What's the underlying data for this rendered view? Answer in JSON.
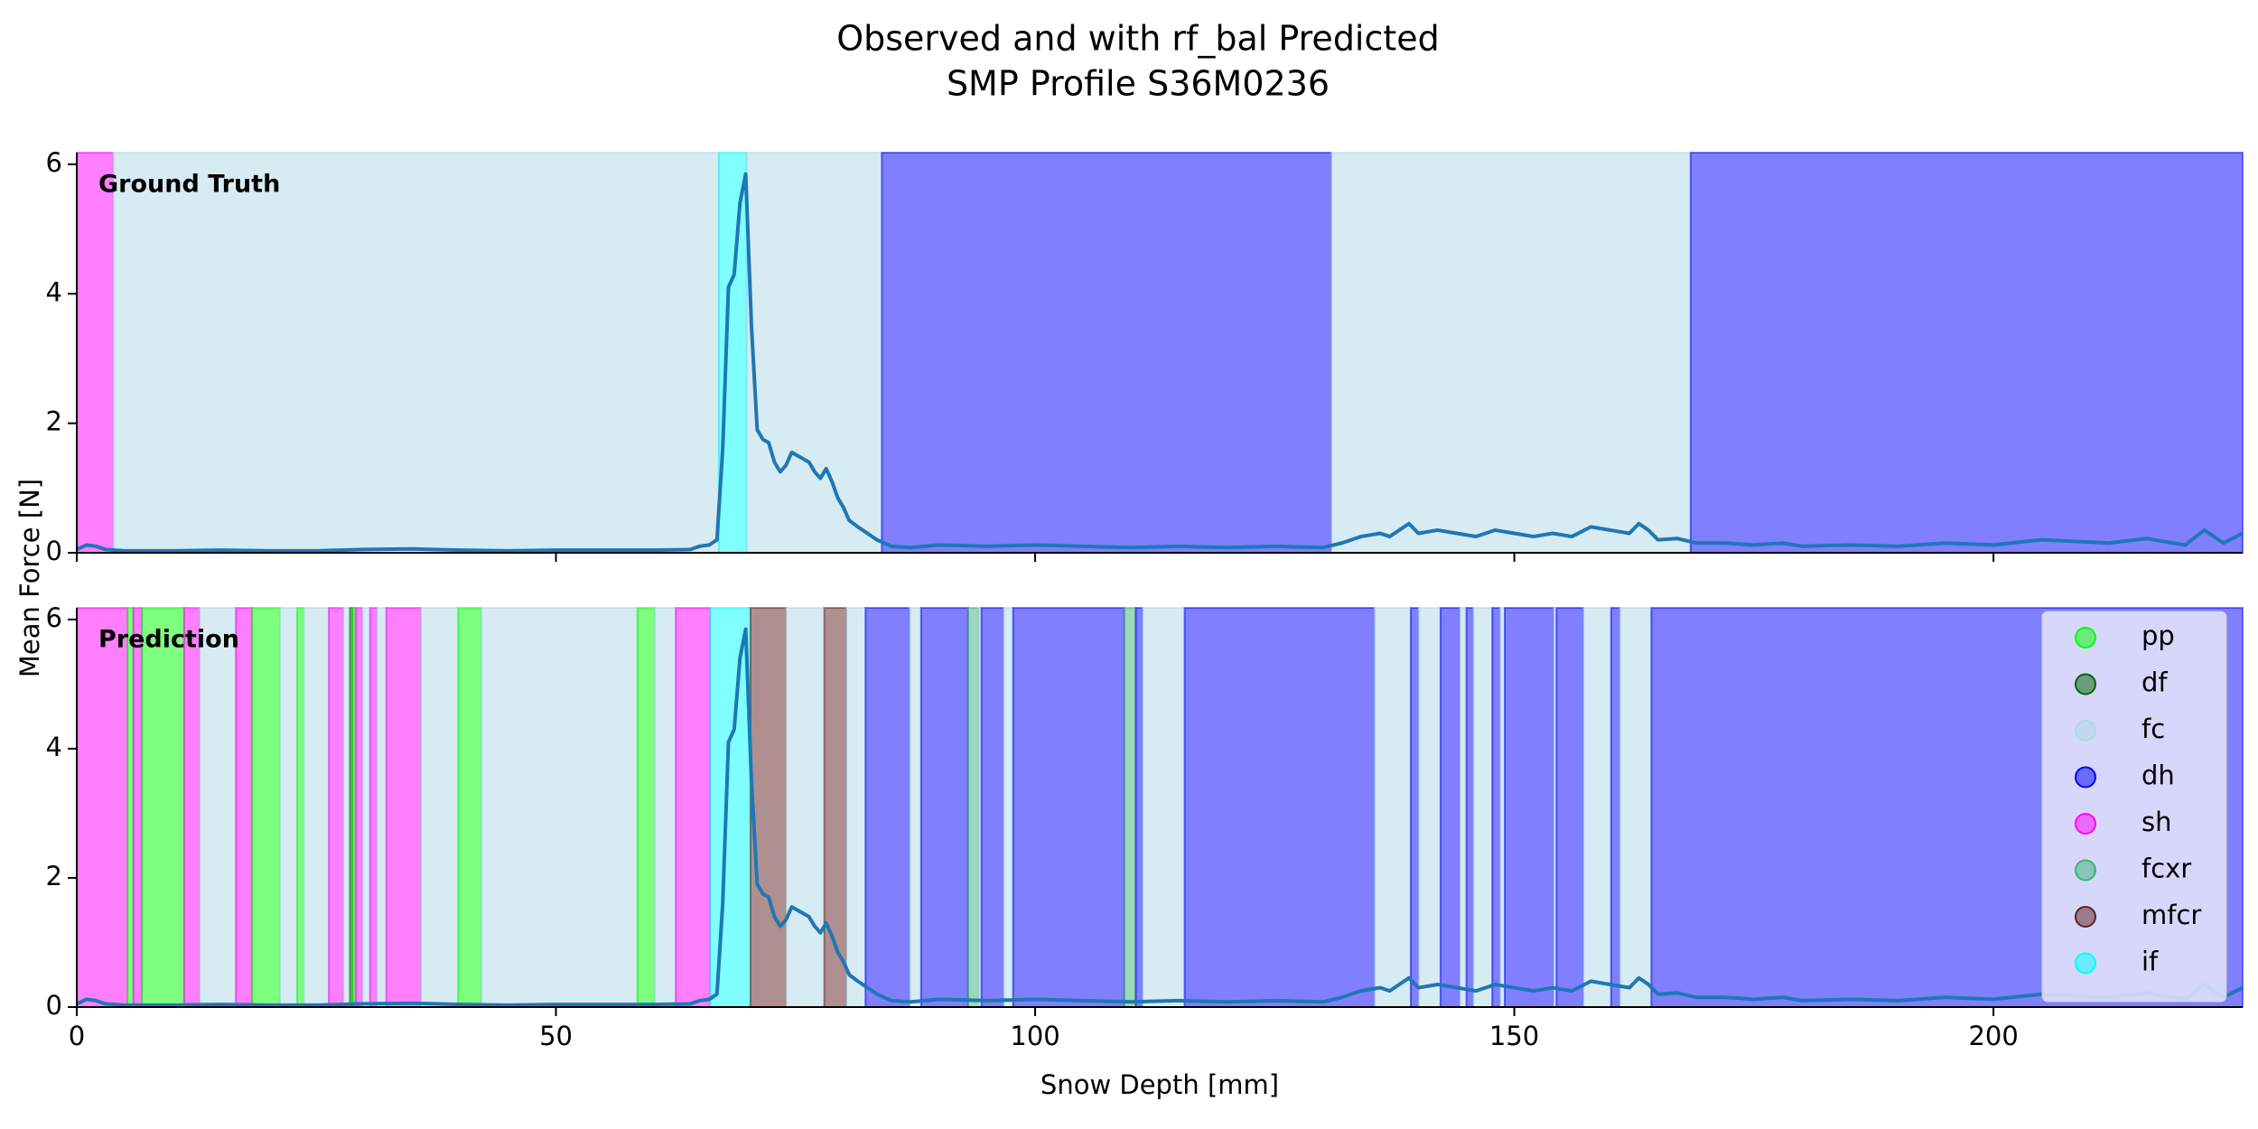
{
  "chart_data": [
    {
      "type": "line",
      "title": "Observed and with rf_bal Predicted",
      "subtitle": "SMP Profile S36M0236",
      "ylabel": "Mean Force [N]",
      "annotation": "Ground Truth",
      "xlim": [
        0,
        226
      ],
      "ylim": [
        0,
        6.18
      ],
      "yticks": [
        0,
        2,
        4,
        6
      ],
      "line_color": "#1f77b4",
      "span_alpha": 0.5,
      "x": [
        0,
        1,
        2,
        3,
        5,
        10,
        15,
        20,
        25,
        30,
        35,
        40,
        45,
        50,
        55,
        60,
        64,
        65,
        66,
        66.8,
        67.4,
        68,
        68.6,
        69.2,
        69.8,
        70.4,
        71,
        71.6,
        72.2,
        72.8,
        73.4,
        74,
        74.6,
        75.2,
        75.8,
        76.4,
        77,
        77.6,
        78.2,
        78.8,
        79.4,
        80,
        80.6,
        81.5,
        82.5,
        83.5,
        85,
        87,
        90,
        95,
        100,
        105,
        110,
        115,
        120,
        125,
        130,
        132,
        134,
        136,
        137,
        138,
        139,
        140,
        142,
        144,
        146,
        148,
        150,
        152,
        154,
        156,
        158,
        160,
        162,
        163,
        164,
        165,
        167,
        169,
        172,
        175,
        178,
        180,
        185,
        190,
        195,
        200,
        205,
        208,
        212,
        216,
        220,
        222,
        224,
        226
      ],
      "values": [
        0.05,
        0.12,
        0.1,
        0.05,
        0.03,
        0.03,
        0.04,
        0.03,
        0.03,
        0.05,
        0.06,
        0.04,
        0.03,
        0.04,
        0.04,
        0.04,
        0.05,
        0.1,
        0.12,
        0.2,
        1.6,
        4.1,
        4.3,
        5.4,
        5.85,
        3.5,
        1.9,
        1.75,
        1.7,
        1.4,
        1.25,
        1.35,
        1.55,
        1.5,
        1.45,
        1.4,
        1.25,
        1.15,
        1.3,
        1.1,
        0.85,
        0.7,
        0.5,
        0.4,
        0.3,
        0.2,
        0.1,
        0.08,
        0.12,
        0.1,
        0.12,
        0.1,
        0.08,
        0.1,
        0.08,
        0.1,
        0.08,
        0.15,
        0.25,
        0.3,
        0.25,
        0.35,
        0.45,
        0.3,
        0.35,
        0.3,
        0.25,
        0.35,
        0.3,
        0.25,
        0.3,
        0.25,
        0.4,
        0.35,
        0.3,
        0.45,
        0.35,
        0.2,
        0.22,
        0.15,
        0.15,
        0.12,
        0.15,
        0.1,
        0.12,
        0.1,
        0.15,
        0.12,
        0.2,
        0.18,
        0.15,
        0.22,
        0.12,
        0.35,
        0.15,
        0.3
      ],
      "spans": [
        {
          "class": "sh",
          "start": 0,
          "end": 3.8
        },
        {
          "class": "fc",
          "start": 3.8,
          "end": 67
        },
        {
          "class": "if",
          "start": 67,
          "end": 69.9
        },
        {
          "class": "fc",
          "start": 69.9,
          "end": 84
        },
        {
          "class": "dh",
          "start": 84,
          "end": 130.9
        },
        {
          "class": "fc",
          "start": 130.9,
          "end": 168.4
        },
        {
          "class": "dh",
          "start": 168.4,
          "end": 226
        }
      ]
    },
    {
      "type": "line",
      "xlabel": "Snow Depth [mm]",
      "annotation": "Prediction",
      "xlim": [
        0,
        226
      ],
      "ylim": [
        0,
        6.18
      ],
      "xticks": [
        0,
        50,
        100,
        150,
        200
      ],
      "yticks": [
        0,
        2,
        4,
        6
      ],
      "line_color": "#1f77b4",
      "span_alpha": 0.5,
      "x": [
        0,
        1,
        2,
        3,
        5,
        10,
        15,
        20,
        25,
        30,
        35,
        40,
        45,
        50,
        55,
        60,
        64,
        65,
        66,
        66.8,
        67.4,
        68,
        68.6,
        69.2,
        69.8,
        70.4,
        71,
        71.6,
        72.2,
        72.8,
        73.4,
        74,
        74.6,
        75.2,
        75.8,
        76.4,
        77,
        77.6,
        78.2,
        78.8,
        79.4,
        80,
        80.6,
        81.5,
        82.5,
        83.5,
        85,
        87,
        90,
        95,
        100,
        105,
        110,
        115,
        120,
        125,
        130,
        132,
        134,
        136,
        137,
        138,
        139,
        140,
        142,
        144,
        146,
        148,
        150,
        152,
        154,
        156,
        158,
        160,
        162,
        163,
        164,
        165,
        167,
        169,
        172,
        175,
        178,
        180,
        185,
        190,
        195,
        200,
        205,
        208,
        212,
        216,
        220,
        222,
        224,
        226
      ],
      "values": [
        0.05,
        0.12,
        0.1,
        0.05,
        0.03,
        0.03,
        0.04,
        0.03,
        0.03,
        0.05,
        0.06,
        0.04,
        0.03,
        0.04,
        0.04,
        0.04,
        0.05,
        0.1,
        0.12,
        0.2,
        1.6,
        4.1,
        4.3,
        5.4,
        5.85,
        3.5,
        1.9,
        1.75,
        1.7,
        1.4,
        1.25,
        1.35,
        1.55,
        1.5,
        1.45,
        1.4,
        1.25,
        1.15,
        1.3,
        1.1,
        0.85,
        0.7,
        0.5,
        0.4,
        0.3,
        0.2,
        0.1,
        0.08,
        0.12,
        0.1,
        0.12,
        0.1,
        0.08,
        0.1,
        0.08,
        0.1,
        0.08,
        0.15,
        0.25,
        0.3,
        0.25,
        0.35,
        0.45,
        0.3,
        0.35,
        0.3,
        0.25,
        0.35,
        0.3,
        0.25,
        0.3,
        0.25,
        0.4,
        0.35,
        0.3,
        0.45,
        0.35,
        0.2,
        0.22,
        0.15,
        0.15,
        0.12,
        0.15,
        0.1,
        0.12,
        0.1,
        0.15,
        0.12,
        0.2,
        0.18,
        0.15,
        0.22,
        0.12,
        0.35,
        0.15,
        0.3
      ],
      "spans": [
        {
          "class": "sh",
          "start": 0,
          "end": 5.3
        },
        {
          "class": "pp",
          "start": 5.3,
          "end": 5.9
        },
        {
          "class": "sh",
          "start": 5.9,
          "end": 6.8
        },
        {
          "class": "pp",
          "start": 6.8,
          "end": 11.2
        },
        {
          "class": "sh",
          "start": 11.2,
          "end": 12.8
        },
        {
          "class": "fc",
          "start": 12.8,
          "end": 16.6
        },
        {
          "class": "sh",
          "start": 16.6,
          "end": 18.3
        },
        {
          "class": "pp",
          "start": 18.3,
          "end": 21.2
        },
        {
          "class": "fc",
          "start": 21.2,
          "end": 23
        },
        {
          "class": "pp",
          "start": 23,
          "end": 23.7
        },
        {
          "class": "fc",
          "start": 23.7,
          "end": 26.3
        },
        {
          "class": "sh",
          "start": 26.3,
          "end": 27.8
        },
        {
          "class": "fc",
          "start": 27.8,
          "end": 28.5
        },
        {
          "class": "df",
          "start": 28.5,
          "end": 28.8
        },
        {
          "class": "pp",
          "start": 28.8,
          "end": 29.1
        },
        {
          "class": "sh",
          "start": 29.1,
          "end": 29.8
        },
        {
          "class": "fc",
          "start": 29.8,
          "end": 30.6
        },
        {
          "class": "sh",
          "start": 30.6,
          "end": 31.3
        },
        {
          "class": "fc",
          "start": 31.3,
          "end": 32.3
        },
        {
          "class": "sh",
          "start": 32.3,
          "end": 35.9
        },
        {
          "class": "fc",
          "start": 35.9,
          "end": 39.8
        },
        {
          "class": "pp",
          "start": 39.8,
          "end": 42.2
        },
        {
          "class": "fc",
          "start": 42.2,
          "end": 58.5
        },
        {
          "class": "pp",
          "start": 58.5,
          "end": 60.3
        },
        {
          "class": "fc",
          "start": 60.3,
          "end": 62.5
        },
        {
          "class": "sh",
          "start": 62.5,
          "end": 66.1
        },
        {
          "class": "if",
          "start": 66.1,
          "end": 70.3
        },
        {
          "class": "mfcr",
          "start": 70.3,
          "end": 74
        },
        {
          "class": "fc",
          "start": 74,
          "end": 78
        },
        {
          "class": "mfcr",
          "start": 78,
          "end": 80.3
        },
        {
          "class": "fc",
          "start": 80.3,
          "end": 82.3
        },
        {
          "class": "dh",
          "start": 82.3,
          "end": 86.9
        },
        {
          "class": "fc",
          "start": 86.9,
          "end": 88.1
        },
        {
          "class": "dh",
          "start": 88.1,
          "end": 93
        },
        {
          "class": "fcxr",
          "start": 93,
          "end": 94.1
        },
        {
          "class": "fc",
          "start": 94.1,
          "end": 94.4
        },
        {
          "class": "dh",
          "start": 94.4,
          "end": 96.7
        },
        {
          "class": "fc",
          "start": 96.7,
          "end": 97.7
        },
        {
          "class": "dh",
          "start": 97.7,
          "end": 109.3
        },
        {
          "class": "fcxr",
          "start": 109.3,
          "end": 110.5
        },
        {
          "class": "dh",
          "start": 110.5,
          "end": 111.2
        },
        {
          "class": "fc",
          "start": 111.2,
          "end": 115.6
        },
        {
          "class": "dh",
          "start": 115.6,
          "end": 135.4
        },
        {
          "class": "fc",
          "start": 135.4,
          "end": 139.2
        },
        {
          "class": "dh",
          "start": 139.2,
          "end": 140
        },
        {
          "class": "fc",
          "start": 140,
          "end": 142.3
        },
        {
          "class": "dh",
          "start": 142.3,
          "end": 144.3
        },
        {
          "class": "fc",
          "start": 144.3,
          "end": 145
        },
        {
          "class": "dh",
          "start": 145,
          "end": 145.7
        },
        {
          "class": "fc",
          "start": 145.7,
          "end": 147.7
        },
        {
          "class": "dh",
          "start": 147.7,
          "end": 148.5
        },
        {
          "class": "fc",
          "start": 148.5,
          "end": 149
        },
        {
          "class": "dh",
          "start": 149,
          "end": 154.1
        },
        {
          "class": "fc",
          "start": 154.1,
          "end": 154.4
        },
        {
          "class": "dh",
          "start": 154.4,
          "end": 157.2
        },
        {
          "class": "fc",
          "start": 157.2,
          "end": 160.1
        },
        {
          "class": "dh",
          "start": 160.1,
          "end": 161
        },
        {
          "class": "fc",
          "start": 161,
          "end": 164.3
        },
        {
          "class": "dh",
          "start": 164.3,
          "end": 226
        }
      ],
      "legend": {
        "loc": "upper right",
        "entries": [
          {
            "name": "pp",
            "color": "#00ff00"
          },
          {
            "name": "df",
            "color": "#006400"
          },
          {
            "name": "fc",
            "color": "#add8e6"
          },
          {
            "name": "dh",
            "color": "#0000ff"
          },
          {
            "name": "sh",
            "color": "#ff00ff"
          },
          {
            "name": "fcxr",
            "color": "#3cb371"
          },
          {
            "name": "mfcr",
            "color": "#602020"
          },
          {
            "name": "if",
            "color": "#00ffff"
          }
        ]
      }
    }
  ]
}
